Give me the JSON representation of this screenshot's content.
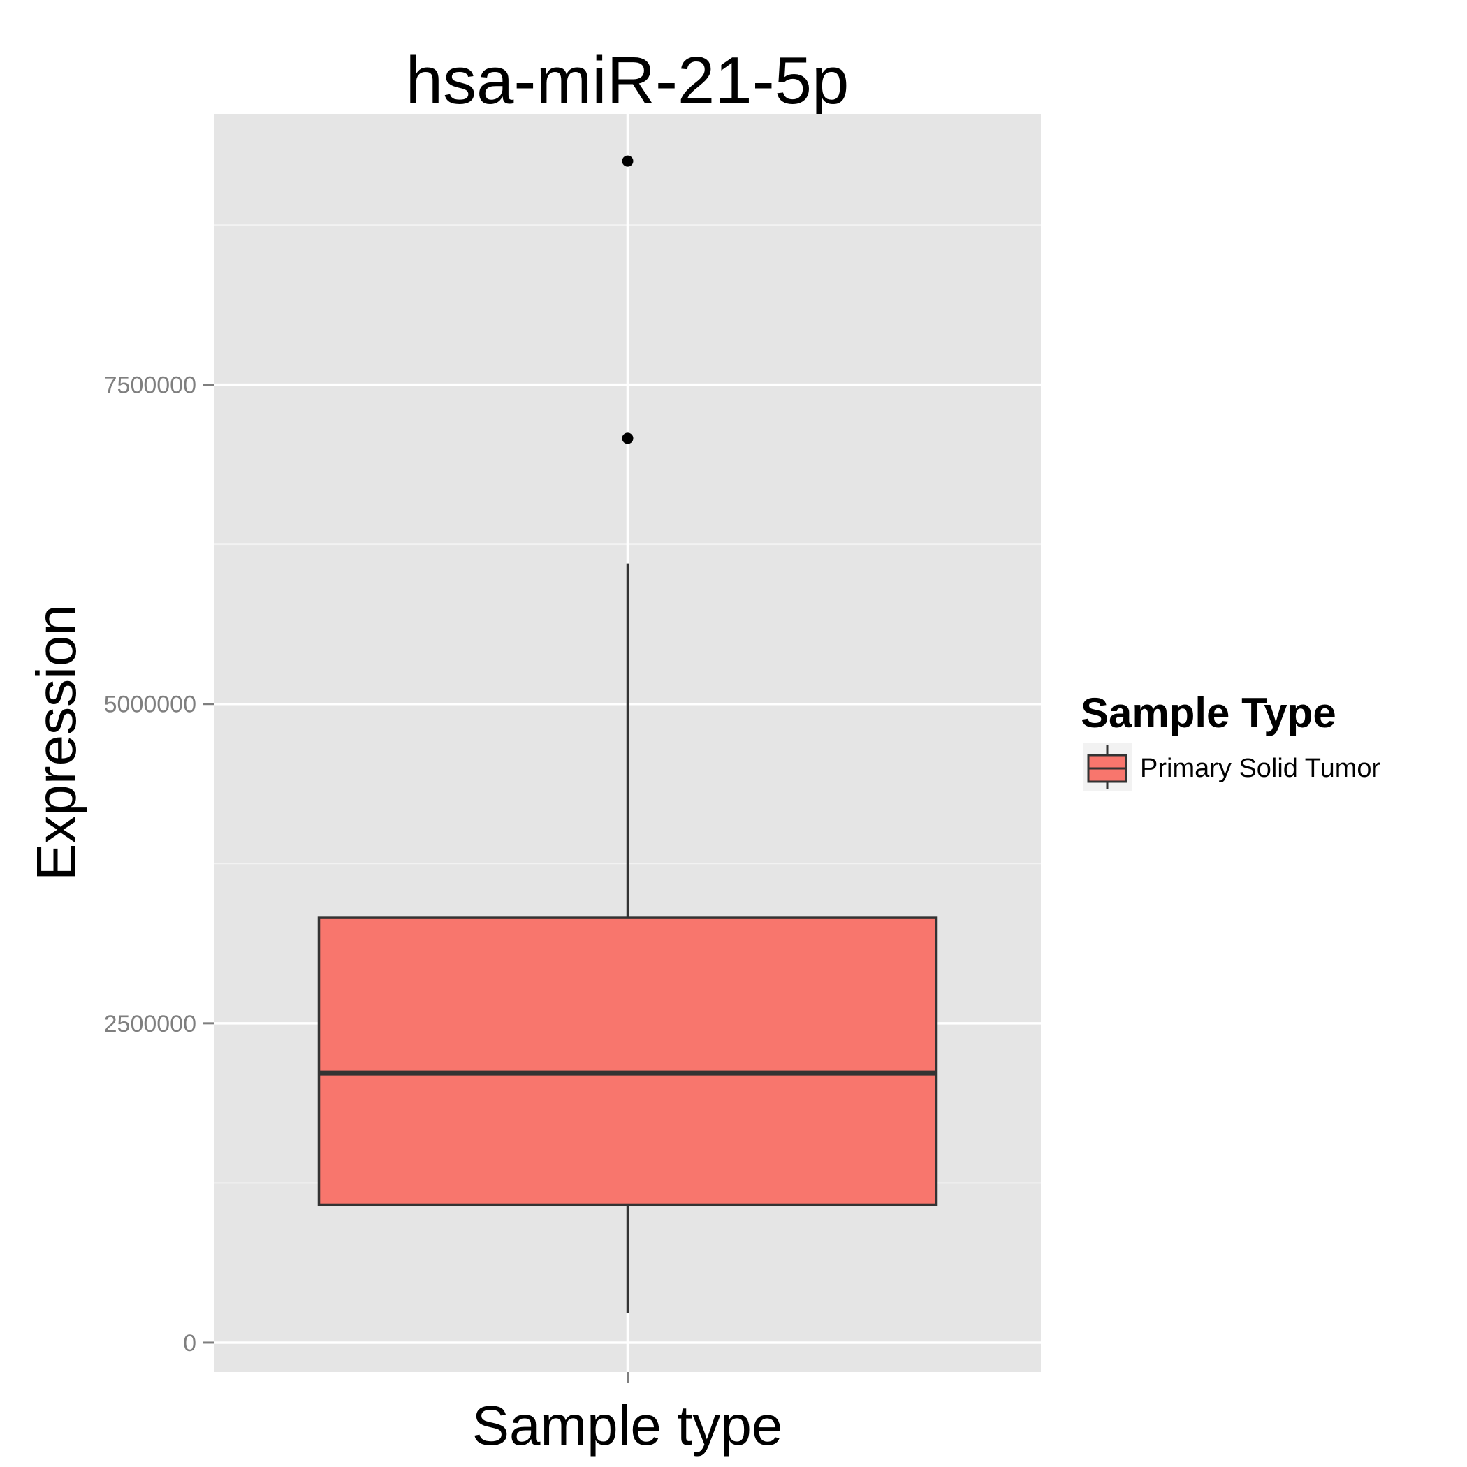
{
  "chart_data": {
    "type": "boxplot",
    "title": "hsa-miR-21-5p",
    "xlabel": "Sample type",
    "ylabel": "Expression",
    "ylim": [
      -230000,
      9620000
    ],
    "yticks": [
      0,
      2500000,
      5000000,
      7500000
    ],
    "ytick_labels": [
      "0",
      "2500000",
      "5000000",
      "7500000"
    ],
    "grid": true,
    "legend": {
      "title": "Sample Type",
      "position": "right",
      "entries": [
        "Primary Solid Tumor"
      ]
    },
    "series": [
      {
        "name": "Primary Solid Tumor",
        "color": "#F8766D",
        "whisker_low": 230000,
        "q1": 1080000,
        "median": 2110000,
        "q3": 3330000,
        "whisker_high": 6100000,
        "outliers": [
          7080000,
          9250000
        ]
      }
    ]
  }
}
